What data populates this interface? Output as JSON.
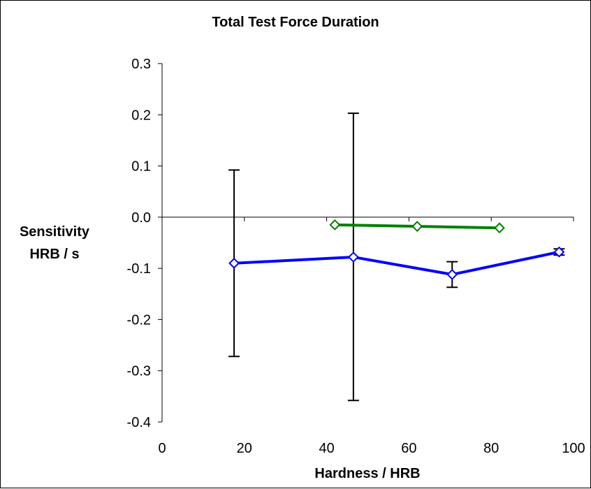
{
  "chart_data": {
    "type": "line",
    "title": "Total Test Force Duration",
    "xlabel": "Hardness / HRB",
    "ylabel_lines": [
      "Sensitivity",
      "HRB / s"
    ],
    "xlim": [
      0,
      100
    ],
    "ylim": [
      -0.4,
      0.3
    ],
    "x_ticks": [
      0,
      20,
      40,
      60,
      80,
      100
    ],
    "y_ticks": [
      0.3,
      0.2,
      0.1,
      0.0,
      -0.1,
      -0.2,
      -0.3,
      -0.4
    ],
    "y_tick_labels": [
      "0.3",
      "0.2",
      "0.1",
      "0.0",
      "-0.1",
      "-0.2",
      "-0.3",
      "-0.4"
    ],
    "grid": false,
    "series": [
      {
        "color": "#0000ff",
        "marker": "diamond",
        "x": [
          17.5,
          46.5,
          70.5,
          96.5
        ],
        "y": [
          -0.09,
          -0.078,
          -0.112,
          -0.068
        ],
        "error_bars": [
          {
            "low": -0.272,
            "high": 0.092
          },
          {
            "low": -0.358,
            "high": 0.203
          },
          {
            "low": -0.137,
            "high": -0.087
          },
          {
            "low": -0.074,
            "high": -0.062
          }
        ]
      },
      {
        "color": "#008000",
        "marker": "diamond",
        "x": [
          42.0,
          62.0,
          82.0
        ],
        "y": [
          -0.015,
          -0.018,
          -0.021
        ]
      }
    ]
  }
}
